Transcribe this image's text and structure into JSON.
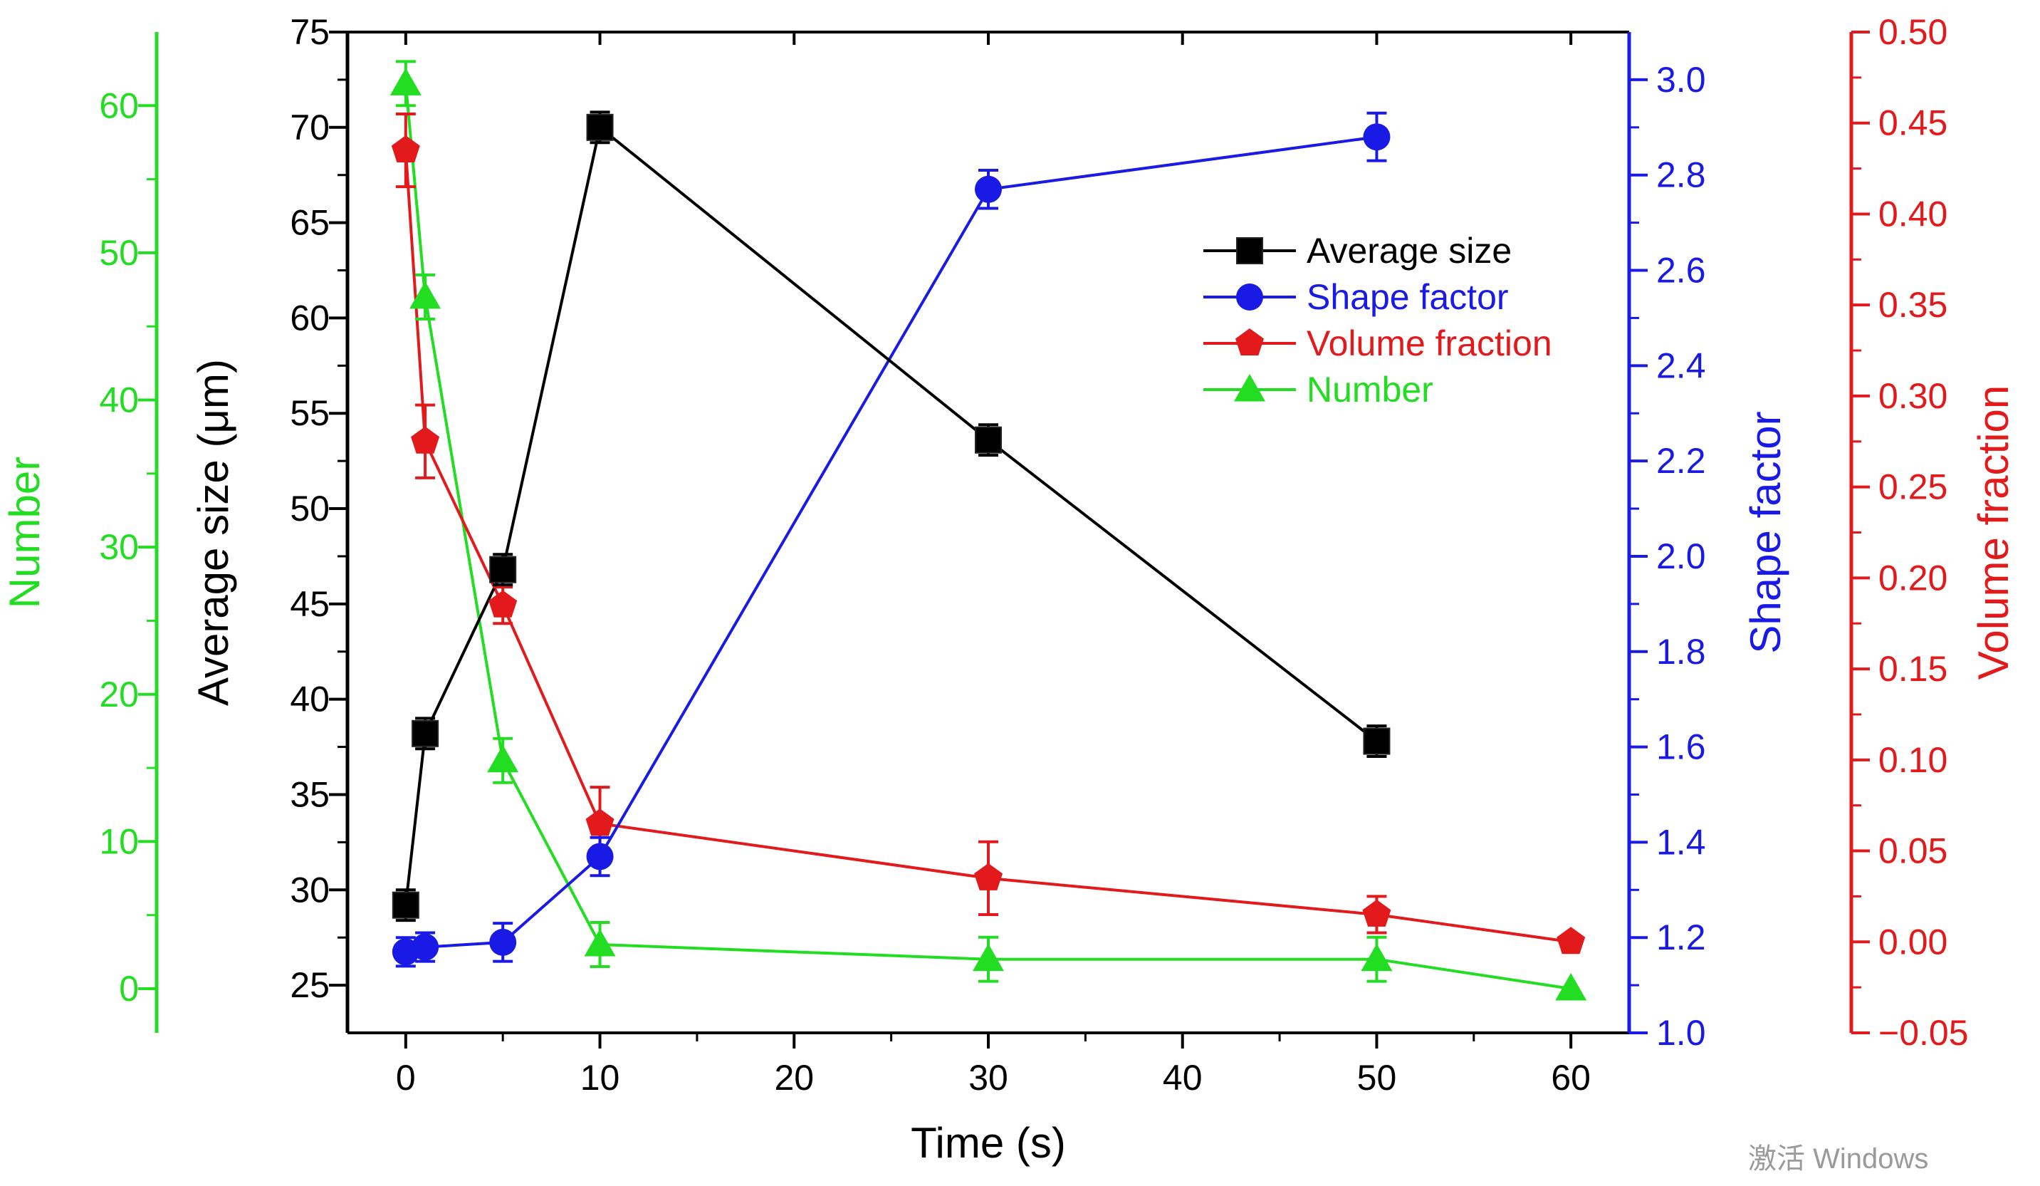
{
  "watermark": "激活 Windows",
  "colors": {
    "average_size": "#000000",
    "shape_factor": "#1a1ae6",
    "volume_fraction": "#e31a1c",
    "number": "#22dd22"
  },
  "chart_data": {
    "type": "scatter",
    "line_connected": true,
    "grid": false,
    "legend_position": "top-right",
    "xlabel": "Time (s)",
    "xlim": [
      -3,
      63
    ],
    "xticks": [
      0,
      10,
      20,
      30,
      40,
      50,
      60
    ],
    "axes": {
      "average_size": {
        "label": "Average size (μm)",
        "side": "left",
        "ylim": [
          22.5,
          75
        ],
        "ticks": [
          25,
          30,
          35,
          40,
          45,
          50,
          55,
          60,
          65,
          70,
          75
        ],
        "tick_labels": [
          "25",
          "30",
          "35",
          "40",
          "45",
          "50",
          "55",
          "60",
          "65",
          "70",
          "75"
        ]
      },
      "number": {
        "label": "Number",
        "side": "left-outer",
        "ylim": [
          -3,
          65
        ],
        "ticks": [
          0,
          10,
          20,
          30,
          40,
          50,
          60
        ],
        "tick_labels": [
          "0",
          "10",
          "20",
          "30",
          "40",
          "50",
          "60"
        ]
      },
      "shape_factor": {
        "label": "Shape factor",
        "side": "right",
        "ylim": [
          1.0,
          3.1
        ],
        "ticks": [
          1.0,
          1.2,
          1.4,
          1.6,
          1.8,
          2.0,
          2.2,
          2.4,
          2.6,
          2.8,
          3.0
        ],
        "tick_labels": [
          "1.0",
          "1.2",
          "1.4",
          "1.6",
          "1.8",
          "2.0",
          "2.2",
          "2.4",
          "2.6",
          "2.8",
          "3.0"
        ]
      },
      "volume_fraction": {
        "label": "Volume fraction",
        "side": "right-outer",
        "ylim": [
          -0.05,
          0.5
        ],
        "ticks": [
          -0.05,
          0.0,
          0.05,
          0.1,
          0.15,
          0.2,
          0.25,
          0.3,
          0.35,
          0.4,
          0.45,
          0.5
        ],
        "tick_labels": [
          "−0.05",
          "0.00",
          "0.05",
          "0.10",
          "0.15",
          "0.20",
          "0.25",
          "0.30",
          "0.35",
          "0.40",
          "0.45",
          "0.50"
        ]
      }
    },
    "series": [
      {
        "name": "Average size",
        "axis": "average_size",
        "marker": "square",
        "color_key": "average_size",
        "x": [
          0,
          1,
          5,
          10,
          30,
          50
        ],
        "y": [
          29.2,
          38.2,
          46.8,
          70.0,
          53.6,
          37.8
        ],
        "err": [
          0.8,
          0.8,
          0.8,
          0.8,
          0.8,
          0.8
        ]
      },
      {
        "name": "Shape factor",
        "axis": "shape_factor",
        "marker": "circle",
        "color_key": "shape_factor",
        "x": [
          0,
          1,
          5,
          10,
          30,
          50
        ],
        "y": [
          1.17,
          1.18,
          1.19,
          1.37,
          2.77,
          2.88
        ],
        "err": [
          0.03,
          0.03,
          0.04,
          0.04,
          0.04,
          0.05
        ]
      },
      {
        "name": "Volume fraction",
        "axis": "volume_fraction",
        "marker": "pentagon",
        "color_key": "volume_fraction",
        "x": [
          0,
          1,
          5,
          10,
          30,
          50,
          60
        ],
        "y": [
          0.435,
          0.275,
          0.185,
          0.065,
          0.035,
          0.015,
          0.0
        ],
        "err": [
          0.02,
          0.02,
          0.01,
          0.02,
          0.02,
          0.01,
          0.0
        ]
      },
      {
        "name": "Number",
        "axis": "number",
        "marker": "triangle",
        "color_key": "number",
        "x": [
          0,
          1,
          5,
          10,
          30,
          50,
          60
        ],
        "y": [
          61.5,
          47.0,
          15.5,
          3.0,
          2.0,
          2.0,
          0.0
        ],
        "err": [
          1.5,
          1.5,
          1.5,
          1.5,
          1.5,
          1.5,
          0.0
        ]
      }
    ]
  }
}
